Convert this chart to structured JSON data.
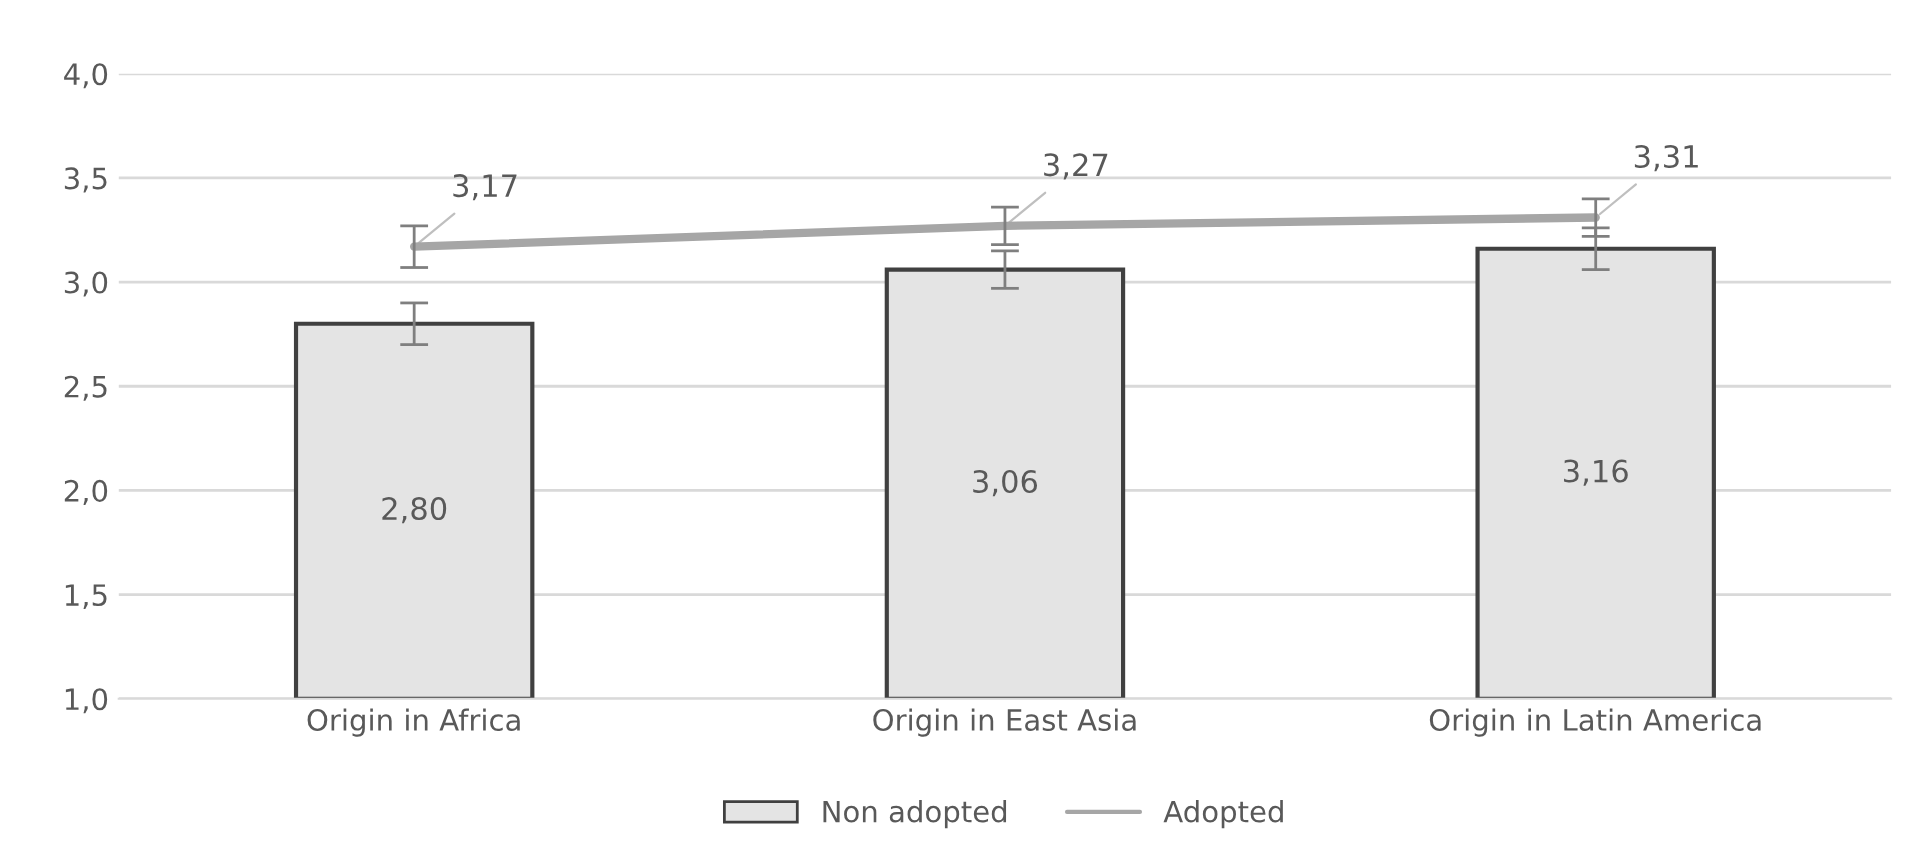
{
  "chart_data": {
    "type": "bar",
    "categories": [
      "Origin in Africa",
      "Origin in East Asia",
      "Origin in Latin America"
    ],
    "series": [
      {
        "name": "Non adopted",
        "color": "#e4e4e4",
        "values": [
          2.8,
          3.06,
          3.16
        ],
        "errors": [
          0.1,
          0.09,
          0.1
        ],
        "value_labels": [
          "2,80",
          "3,06",
          "3,16"
        ]
      },
      {
        "name": "Adopted",
        "type": "line",
        "color": "#a6a6a6",
        "values": [
          3.17,
          3.27,
          3.31
        ],
        "errors": [
          0.1,
          0.09,
          0.09
        ],
        "value_labels": [
          "3,17",
          "3,27",
          "3,31"
        ]
      }
    ],
    "ylim": [
      1.0,
      4.0
    ],
    "yticks": [
      {
        "value": 1.0,
        "label": "1,0"
      },
      {
        "value": 1.5,
        "label": "1,5"
      },
      {
        "value": 2.0,
        "label": "2,0"
      },
      {
        "value": 2.5,
        "label": "2,5"
      },
      {
        "value": 3.0,
        "label": "3,0"
      },
      {
        "value": 3.5,
        "label": "3,5"
      },
      {
        "value": 4.0,
        "label": "4,0"
      }
    ],
    "grid": "y",
    "legend": "bottom"
  }
}
